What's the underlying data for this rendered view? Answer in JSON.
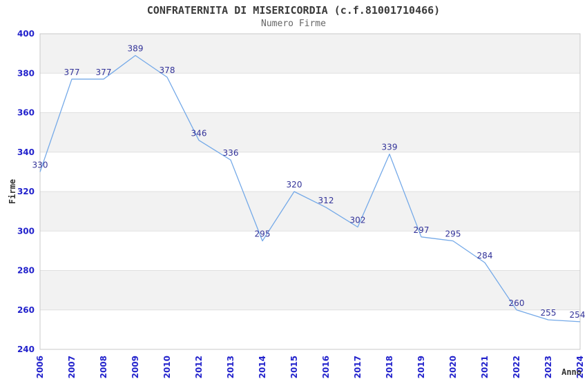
{
  "chart_data": {
    "type": "line",
    "title": "CONFRATERNITA DI MISERICORDIA (c.f.81001710466)",
    "subtitle": "Numero Firme",
    "xlabel": "Anno",
    "ylabel": "Firme",
    "categories": [
      "2006",
      "2007",
      "2008",
      "2009",
      "2010",
      "2012",
      "2013",
      "2014",
      "2015",
      "2016",
      "2017",
      "2018",
      "2019",
      "2020",
      "2021",
      "2022",
      "2023",
      "2024"
    ],
    "values": [
      330,
      377,
      377,
      389,
      378,
      346,
      336,
      295,
      320,
      312,
      302,
      339,
      297,
      295,
      284,
      260,
      255,
      254
    ],
    "ylim": [
      240,
      400
    ],
    "ytick_step": 20,
    "grid": true,
    "legend_position": "none",
    "x_tick_rotation": -90,
    "band_pattern": "alternating gray bands starting at top (400-380 gray)",
    "colors": {
      "series_line": "#74a9e8",
      "axis_tick_text": "#2222cc",
      "data_label_text": "#333399",
      "band_fill": "#f2f2f2",
      "gridline": "#e0e0e0",
      "plot_border": "#c8c8c8",
      "title_text": "#3a3a3a",
      "subtitle_text": "#666666",
      "axis_label_text": "#333333"
    }
  }
}
